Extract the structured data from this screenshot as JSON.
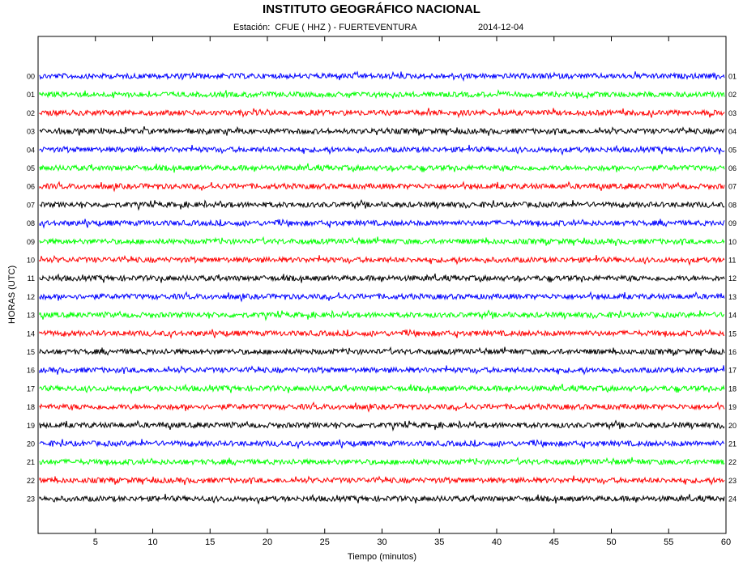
{
  "chart_data": {
    "type": "line",
    "title": "INSTITUTO GEOGRÁFICO NACIONAL",
    "station_label": "Estación:",
    "station": "CFUE ( HHZ ) - FUERTEVENTURA",
    "date": "2014-12-04",
    "xlabel": "Tiempo (minutos)",
    "ylabel": "HORAS (UTC)",
    "xlim": [
      0,
      60
    ],
    "x_ticks": [
      "5",
      "10",
      "15",
      "20",
      "25",
      "30",
      "35",
      "40",
      "45",
      "50",
      "55",
      "60"
    ],
    "left_labels": [
      "00",
      "01",
      "02",
      "03",
      "04",
      "05",
      "06",
      "07",
      "08",
      "09",
      "10",
      "11",
      "12",
      "13",
      "14",
      "15",
      "16",
      "17",
      "18",
      "19",
      "20",
      "21",
      "22",
      "23"
    ],
    "right_labels": [
      "01",
      "02",
      "03",
      "04",
      "05",
      "06",
      "07",
      "08",
      "09",
      "10",
      "11",
      "12",
      "13",
      "14",
      "15",
      "16",
      "17",
      "18",
      "19",
      "20",
      "21",
      "22",
      "23",
      "24"
    ],
    "trace_colors": [
      "#0000ff",
      "#00ff00",
      "#ff0000",
      "#000000"
    ],
    "grid": false
  }
}
